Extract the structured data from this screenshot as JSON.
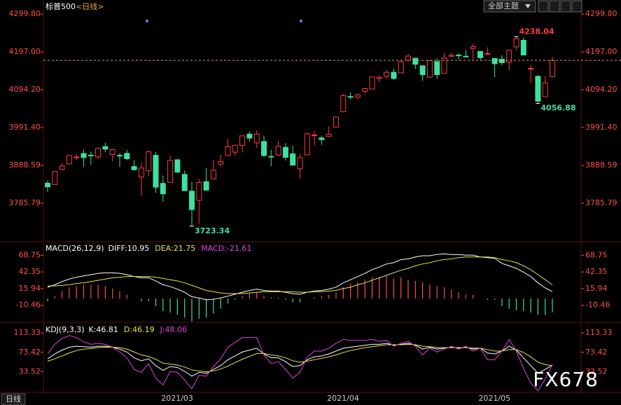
{
  "chart_data": [
    {
      "type": "candlestick",
      "title": "标普500",
      "period": "<日线>",
      "toolbar": "全部主题",
      "period_button": "日线",
      "categories": [
        null,
        null,
        null,
        null,
        null,
        null,
        null,
        null,
        null,
        null,
        null,
        null,
        null,
        null,
        null,
        null,
        null,
        "2021/03",
        null,
        null,
        null,
        null,
        null,
        null,
        null,
        null,
        null,
        null,
        null,
        null,
        null,
        null,
        null,
        null,
        null,
        null,
        null,
        null,
        null,
        null,
        "2021/04",
        null,
        null,
        null,
        null,
        null,
        null,
        null,
        null,
        null,
        null,
        null,
        null,
        null,
        null,
        null,
        null,
        null,
        null,
        null,
        null,
        "2021/05",
        null,
        null,
        null,
        null,
        null,
        null,
        null,
        null,
        null
      ],
      "open": [
        3840.27,
        3836.66,
        3878.3,
        3892.59,
        3910.49,
        3920.78,
        3916.4,
        3911.65,
        3939.61,
        3918.5,
        3915.86,
        3921.16,
        3885.55,
        3857.07,
        3873.71,
        3915.8,
        3839.66,
        3842.51,
        3903.64,
        3863.99,
        3818.53,
        3793.58,
        3844.39,
        3851.93,
        3891.99,
        3915.54,
        3924.52,
        3942.96,
        3973.59,
        3949.57,
        3953.5,
        3913.14,
        3916.48,
        3937.6,
        3919.93,
        3879.34,
        3917.12,
        3969.31,
        3963.34,
        3967.25,
        3992.78,
        4034.44,
        4075.57,
        4074.29,
        4089.95,
        4096.11,
        4124.71,
        4130.1,
        4141.58,
        4139.76,
        4174.14,
        4179.8,
        4159.18,
        4128.42,
        4170.46,
        4138.78,
        4185.03,
        4188.25,
        4185.14,
        4206.14,
        4198.1,
        4191.98,
        4179.04,
        4177.06,
        4169.14,
        4210.34,
        4228.29,
        4150.34,
        4130.55,
        4074.99,
        4129.58
      ],
      "high": [
        3847.51,
        3872.42,
        3894.56,
        3915.77,
        3918.35,
        3931.5,
        3925.99,
        3937.23,
        3950.43,
        3933.61,
        3921.98,
        3930.41,
        3902.92,
        3895.98,
        3928.65,
        3925.02,
        3861.08,
        3914.5,
        3906.41,
        3874.47,
        3843.67,
        3851.69,
        3881.06,
        3903.76,
        3917.35,
        3960.27,
        3944.99,
        3970.08,
        3981.04,
        3983.87,
        3969.62,
        3930.12,
        3955.31,
        3949.13,
        3942.08,
        3919.54,
        3978.19,
        3981.83,
        3968.01,
        3994.41,
        4020.63,
        4083.42,
        4086.23,
        4083.13,
        4098.19,
        4129.48,
        4131.76,
        4148.0,
        4151.69,
        4173.49,
        4191.31,
        4180.81,
        4159.18,
        4175.02,
        4179.57,
        4194.17,
        4194.19,
        4193.35,
        4201.53,
        4218.78,
        4198.1,
        4209.39,
        4179.04,
        4187.72,
        4202.7,
        4238.04,
        4236.39,
        4162.04,
        4134.73,
        4131.58,
        4183.13
      ],
      "low": [
        3816.68,
        3836.66,
        3874.93,
        3892.59,
        3902.64,
        3884.94,
        3890.39,
        3905.78,
        3923.85,
        3900.43,
        3885.03,
        3903.07,
        3874.71,
        3805.59,
        3859.6,
        3814.04,
        3789.54,
        3842.51,
        3868.57,
        3818.86,
        3723.34,
        3730.19,
        3819.25,
        3851.93,
        3885.73,
        3915.54,
        3915.21,
        3923.54,
        3953.44,
        3935.74,
        3910.86,
        3886.75,
        3914.16,
        3901.57,
        3888.69,
        3853.5,
        3917.12,
        3943.25,
        3944.35,
        3966.98,
        3992.78,
        4034.44,
        4068.14,
        4068.31,
        4082.54,
        4095.51,
        4114.82,
        4124.43,
        4120.87,
        4139.76,
        4170.75,
        4150.47,
        4118.38,
        4126.35,
        4123.69,
        4138.78,
        4182.36,
        4176.22,
        4181.78,
        4176.81,
        4174.85,
        4188.03,
        4128.59,
        4160.94,
        4147.33,
        4201.64,
        4188.13,
        4111.53,
        4056.88,
        4074.99,
        4129.58
      ],
      "close": [
        3830.17,
        3871.74,
        3886.83,
        3915.59,
        3911.23,
        3909.88,
        3916.38,
        3934.83,
        3932.59,
        3931.33,
        3913.97,
        3906.71,
        3876.5,
        3881.37,
        3925.43,
        3829.34,
        3811.15,
        3901.82,
        3870.29,
        3819.72,
        3768.47,
        3841.94,
        3821.35,
        3875.44,
        3898.81,
        3939.34,
        3943.34,
        3968.94,
        3962.71,
        3974.12,
        3915.46,
        3913.1,
        3940.59,
        3910.52,
        3889.14,
        3909.52,
        3974.54,
        3971.09,
        3958.55,
        3972.89,
        4019.87,
        4077.91,
        4073.94,
        4079.95,
        4097.17,
        4128.8,
        4127.99,
        4141.59,
        4124.66,
        4170.42,
        4185.47,
        4163.26,
        4134.94,
        4173.42,
        4134.98,
        4180.17,
        4187.62,
        4186.72,
        4183.18,
        4211.47,
        4181.17,
        4192.66,
        4164.66,
        4167.59,
        4201.62,
        4232.6,
        4188.43,
        4152.1,
        4063.04,
        4112.5,
        4173.85
      ],
      "up_color": "#ff3b3b",
      "down_color": "#3ee0a0",
      "last_color": "#e89a50",
      "ylim": [
        3690.6,
        4337.9
      ],
      "yticks": [
        {
          "value": 4299.8,
          "label": "4299.80"
        },
        {
          "value": 4197.0,
          "label": "4197.00"
        },
        {
          "value": 4094.2,
          "label": "4094.20"
        },
        {
          "value": 3991.4,
          "label": "3991.40"
        },
        3888.59,
        3785.79
      ]
    },
    {
      "type": "macd",
      "title": "MACD(26,12,9)",
      "legend": [
        "DIFF:10.95",
        "DEA:21.75",
        "MACD:-21.61"
      ],
      "series": [
        {
          "color": "#ffffff",
          "values": [
            18,
            22,
            27,
            31,
            34,
            36,
            38,
            40,
            41,
            41,
            40,
            38,
            35,
            33,
            33,
            28,
            22,
            19,
            15,
            10,
            3,
            1,
            -2,
            -1,
            1,
            4,
            7,
            10,
            13,
            15,
            13,
            12,
            12,
            10,
            8,
            7,
            10,
            12,
            13,
            15,
            18,
            25,
            30,
            35,
            40,
            46,
            50,
            55,
            57,
            62,
            63,
            66,
            68,
            68,
            70,
            71,
            70,
            70,
            69,
            69,
            66,
            65,
            64,
            56,
            52,
            48,
            42,
            35,
            25,
            17,
            10.95
          ]
        },
        {
          "color": "#e8e24a",
          "values": [
            20,
            20,
            21,
            22,
            24,
            25,
            27,
            29,
            31,
            33,
            34,
            35,
            35,
            35,
            35,
            34,
            32,
            30,
            28,
            25,
            21,
            17,
            13,
            11,
            9,
            8,
            8,
            8,
            9,
            10,
            11,
            11,
            11,
            11,
            11,
            10,
            10,
            11,
            11,
            12,
            13,
            16,
            18,
            22,
            25,
            29,
            33,
            37,
            41,
            45,
            48,
            52,
            55,
            57,
            60,
            62,
            63,
            65,
            66,
            66,
            66,
            66,
            65,
            62,
            60,
            57,
            52,
            46,
            38,
            30,
            21.75
          ]
        }
      ],
      "hist": {
        "color": "#ff4d4d",
        "down_color": "#3ee0a0",
        "values": [
          -4,
          4,
          12,
          18,
          20,
          22,
          22,
          22,
          20,
          16,
          12,
          6,
          0,
          -4,
          -4,
          -12,
          -20,
          -22,
          -26,
          -30,
          -36,
          -32,
          -30,
          -24,
          -16,
          -8,
          -2,
          4,
          8,
          10,
          4,
          2,
          2,
          -2,
          -6,
          -6,
          0,
          2,
          4,
          6,
          10,
          18,
          24,
          26,
          30,
          34,
          34,
          36,
          32,
          34,
          30,
          28,
          26,
          22,
          20,
          18,
          14,
          10,
          6,
          6,
          0,
          -2,
          -2,
          -12,
          -16,
          -18,
          -20,
          -22,
          -26,
          -26,
          -21.61
        ]
      },
      "ylim": [
        -36.5,
        88
      ],
      "yticks": [
        68.75,
        42.35,
        15.94,
        -10.46
      ]
    },
    {
      "type": "kdj",
      "title": "KDJ(9,3,3)",
      "legend": [
        "K:46.81",
        "D:46.19",
        "J:48.06"
      ],
      "series": [
        {
          "color": "#ffffff",
          "values": [
            60,
            70,
            78,
            84,
            86,
            85,
            84,
            86,
            86,
            84,
            80,
            74,
            62,
            56,
            60,
            46,
            36,
            44,
            42,
            34,
            24,
            32,
            30,
            38,
            46,
            58,
            66,
            74,
            78,
            82,
            70,
            62,
            62,
            54,
            44,
            46,
            58,
            64,
            66,
            70,
            76,
            82,
            84,
            86,
            88,
            90,
            90,
            92,
            88,
            90,
            92,
            88,
            80,
            84,
            80,
            82,
            84,
            82,
            84,
            80,
            82,
            72,
            70,
            76,
            86,
            78,
            62,
            46,
            30,
            38,
            46.81
          ]
        },
        {
          "color": "#e8e24a",
          "values": [
            55,
            60,
            66,
            72,
            77,
            80,
            81,
            83,
            84,
            84,
            83,
            80,
            74,
            68,
            65,
            59,
            51,
            49,
            47,
            43,
            37,
            35,
            33,
            35,
            39,
            45,
            52,
            59,
            65,
            71,
            71,
            68,
            66,
            62,
            56,
            53,
            55,
            58,
            61,
            64,
            68,
            73,
            77,
            80,
            83,
            85,
            87,
            89,
            89,
            89,
            90,
            89,
            86,
            85,
            83,
            83,
            83,
            83,
            83,
            82,
            82,
            79,
            76,
            76,
            79,
            79,
            73,
            64,
            53,
            48,
            46.19
          ]
        },
        {
          "color": "#e040e0",
          "values": [
            70,
            90,
            102,
            108,
            104,
            95,
            90,
            92,
            90,
            84,
            74,
            62,
            38,
            32,
            50,
            20,
            6,
            34,
            32,
            16,
            -2,
            26,
            24,
            44,
            60,
            84,
            94,
            104,
            104,
            104,
            68,
            50,
            54,
            38,
            20,
            32,
            64,
            76,
            76,
            82,
            92,
            100,
            98,
            98,
            98,
            100,
            96,
            98,
            86,
            92,
            96,
            86,
            68,
            82,
            74,
            80,
            86,
            80,
            86,
            76,
            82,
            58,
            58,
            76,
            100,
            76,
            40,
            10,
            -6,
            18,
            48.06
          ]
        }
      ],
      "ylim": [
        -8,
        132.5
      ],
      "yticks": [
        113.33,
        73.42,
        33.52
      ]
    },
    {
      "watermark": "FX678"
    }
  ]
}
